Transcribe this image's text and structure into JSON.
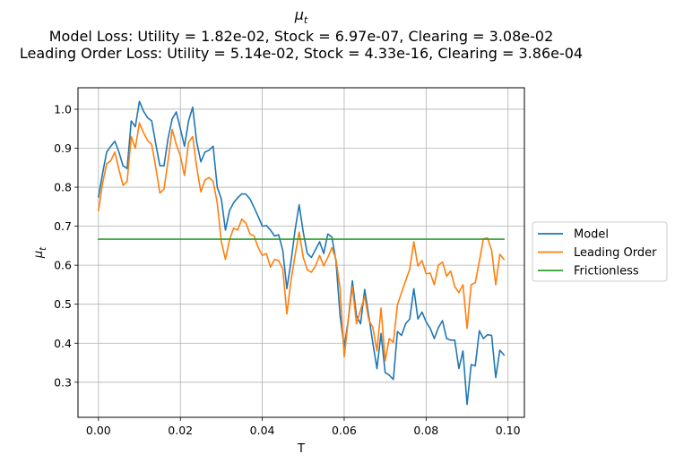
{
  "chart_data": {
    "type": "line",
    "title_symbol": "μ",
    "title_subscript": "t",
    "title_line2": "Model Loss: Utility = 1.82e-02, Stock = 6.97e-07, Clearing = 3.08e-02",
    "title_line3": "Leading Order Loss: Utility = 5.14e-02, Stock = 4.33e-16, Clearing = 3.86e-04",
    "xlabel": "T",
    "ylabel_symbol": "μ",
    "ylabel_subscript": "t",
    "xlim": [
      -0.005,
      0.104
    ],
    "ylim": [
      0.21,
      1.055
    ],
    "xticks": [
      0.0,
      0.02,
      0.04,
      0.06,
      0.08,
      0.1
    ],
    "xtick_labels": [
      "0.00",
      "0.02",
      "0.04",
      "0.06",
      "0.08",
      "0.10"
    ],
    "yticks": [
      0.3,
      0.4,
      0.5,
      0.6,
      0.7,
      0.8,
      0.9,
      1.0
    ],
    "ytick_labels": [
      "0.3",
      "0.4",
      "0.5",
      "0.6",
      "0.7",
      "0.8",
      "0.9",
      "1.0"
    ],
    "grid": true,
    "legend_position": "outside-right",
    "x": [
      0.0,
      0.001,
      0.002,
      0.003,
      0.004,
      0.005,
      0.006,
      0.007,
      0.008,
      0.009,
      0.01,
      0.011,
      0.012,
      0.013,
      0.014,
      0.015,
      0.016,
      0.017,
      0.018,
      0.019,
      0.02,
      0.021,
      0.022,
      0.023,
      0.024,
      0.025,
      0.026,
      0.027,
      0.028,
      0.029,
      0.03,
      0.031,
      0.032,
      0.033,
      0.034,
      0.035,
      0.036,
      0.037,
      0.038,
      0.039,
      0.04,
      0.041,
      0.042,
      0.043,
      0.044,
      0.045,
      0.046,
      0.047,
      0.048,
      0.049,
      0.05,
      0.051,
      0.052,
      0.053,
      0.054,
      0.055,
      0.056,
      0.057,
      0.058,
      0.059,
      0.06,
      0.061,
      0.062,
      0.063,
      0.064,
      0.065,
      0.066,
      0.067,
      0.068,
      0.069,
      0.07,
      0.071,
      0.072,
      0.073,
      0.074,
      0.075,
      0.076,
      0.077,
      0.078,
      0.079,
      0.08,
      0.081,
      0.082,
      0.083,
      0.084,
      0.085,
      0.086,
      0.087,
      0.088,
      0.089,
      0.09,
      0.091,
      0.092,
      0.093,
      0.094,
      0.095,
      0.096,
      0.097,
      0.098,
      0.099
    ],
    "series": [
      {
        "name": "Model",
        "color": "#1f77b4",
        "values": [
          0.775,
          0.835,
          0.89,
          0.905,
          0.918,
          0.89,
          0.855,
          0.848,
          0.97,
          0.955,
          1.02,
          0.995,
          0.978,
          0.97,
          0.91,
          0.855,
          0.855,
          0.925,
          0.975,
          0.993,
          0.95,
          0.905,
          0.97,
          1.005,
          0.915,
          0.865,
          0.89,
          0.895,
          0.905,
          0.8,
          0.77,
          0.69,
          0.74,
          0.76,
          0.773,
          0.783,
          0.782,
          0.77,
          0.748,
          0.725,
          0.7,
          0.702,
          0.69,
          0.675,
          0.678,
          0.638,
          0.54,
          0.608,
          0.69,
          0.755,
          0.685,
          0.63,
          0.62,
          0.64,
          0.66,
          0.63,
          0.68,
          0.672,
          0.61,
          0.47,
          0.39,
          0.46,
          0.56,
          0.47,
          0.45,
          0.538,
          0.47,
          0.4,
          0.335,
          0.425,
          0.325,
          0.318,
          0.307,
          0.43,
          0.42,
          0.45,
          0.462,
          0.54,
          0.462,
          0.48,
          0.455,
          0.438,
          0.412,
          0.44,
          0.458,
          0.412,
          0.408,
          0.408,
          0.335,
          0.38,
          0.243,
          0.345,
          0.342,
          0.432,
          0.412,
          0.422,
          0.42,
          0.312,
          0.382,
          0.37
        ]
      },
      {
        "name": "Leading Order",
        "color": "#ff7f0e",
        "values": [
          0.74,
          0.81,
          0.86,
          0.868,
          0.89,
          0.845,
          0.805,
          0.815,
          0.93,
          0.9,
          0.965,
          0.94,
          0.92,
          0.91,
          0.85,
          0.785,
          0.795,
          0.868,
          0.948,
          0.91,
          0.88,
          0.83,
          0.915,
          0.93,
          0.85,
          0.788,
          0.818,
          0.825,
          0.815,
          0.76,
          0.66,
          0.615,
          0.665,
          0.695,
          0.69,
          0.718,
          0.708,
          0.68,
          0.675,
          0.645,
          0.625,
          0.63,
          0.595,
          0.615,
          0.612,
          0.59,
          0.475,
          0.56,
          0.625,
          0.685,
          0.62,
          0.588,
          0.582,
          0.598,
          0.625,
          0.598,
          0.62,
          0.645,
          0.615,
          0.54,
          0.365,
          0.46,
          0.545,
          0.45,
          0.485,
          0.52,
          0.46,
          0.44,
          0.38,
          0.49,
          0.355,
          0.412,
          0.402,
          0.498,
          0.53,
          0.56,
          0.59,
          0.66,
          0.598,
          0.612,
          0.578,
          0.58,
          0.55,
          0.6,
          0.608,
          0.572,
          0.585,
          0.545,
          0.53,
          0.55,
          0.438,
          0.55,
          0.555,
          0.61,
          0.668,
          0.67,
          0.638,
          0.55,
          0.628,
          0.615
        ]
      },
      {
        "name": "Frictionless",
        "color": "#2ca02c",
        "constant": 0.6667
      }
    ]
  }
}
